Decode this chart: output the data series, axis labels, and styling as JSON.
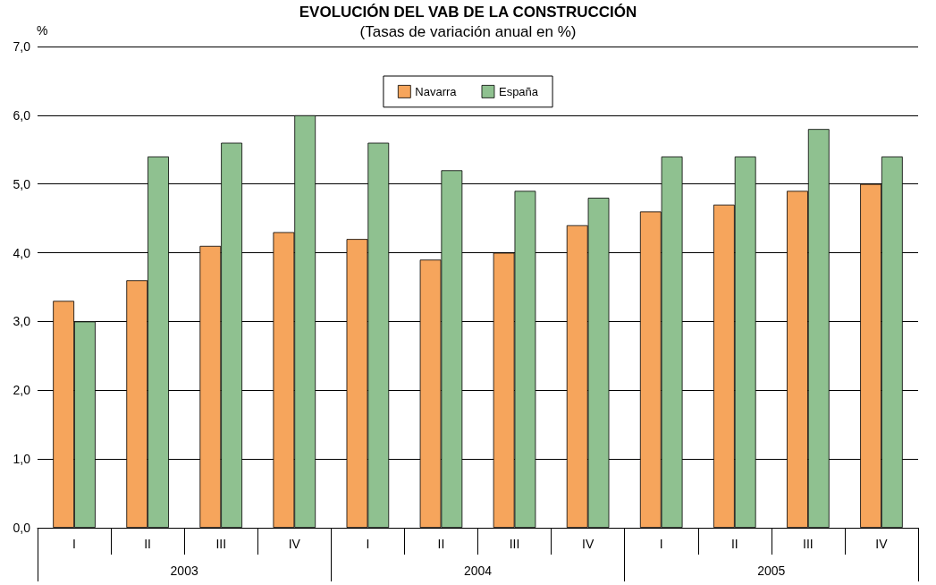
{
  "chart_data": {
    "type": "bar",
    "title": "EVOLUCIÓN DEL VAB DE LA CONSTRUCCIÓN",
    "subtitle": "(Tasas de variación anual en %)",
    "ylabel": "%",
    "categories": [
      "I",
      "II",
      "III",
      "IV",
      "I",
      "II",
      "III",
      "IV",
      "I",
      "II",
      "III",
      "IV"
    ],
    "series": [
      {
        "name": "Navarra",
        "color": "#f6a55c",
        "values": [
          3.3,
          3.6,
          4.1,
          4.3,
          4.2,
          3.9,
          4.0,
          4.4,
          4.6,
          4.7,
          4.9,
          5.0
        ]
      },
      {
        "name": "España",
        "color": "#8fc190",
        "values": [
          3.0,
          5.4,
          5.6,
          6.0,
          5.6,
          5.2,
          4.9,
          4.8,
          5.4,
          5.4,
          5.8,
          5.4
        ]
      }
    ],
    "ylim": [
      0,
      7
    ],
    "yticks": [
      {
        "value": 0,
        "label": "0,0"
      },
      {
        "value": 1,
        "label": "1,0"
      },
      {
        "value": 2,
        "label": "2,0"
      },
      {
        "value": 3,
        "label": "3,0"
      },
      {
        "value": 4,
        "label": "4,0"
      },
      {
        "value": 5,
        "label": "5,0"
      },
      {
        "value": 6,
        "label": "6,0"
      },
      {
        "value": 7,
        "label": "7,0"
      }
    ],
    "annotations": [
      "2003",
      "2004",
      "2005"
    ],
    "grid": "y",
    "legend": "top"
  }
}
